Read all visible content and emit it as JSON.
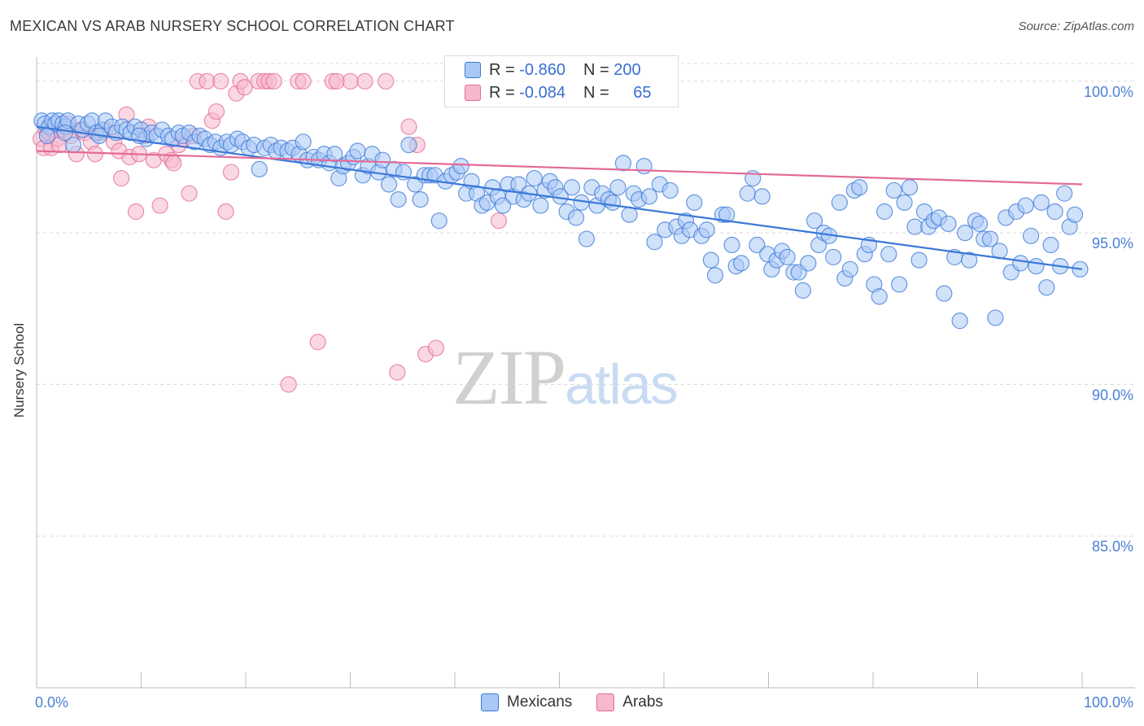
{
  "title": "MEXICAN VS ARAB NURSERY SCHOOL CORRELATION CHART",
  "source": "Source: ZipAtlas.com",
  "watermark": {
    "zip": "ZIP",
    "atlas": "atlas"
  },
  "colors": {
    "blue": "#3a78d8",
    "blue_fill": "#a9c8f5",
    "pink": "#e46a96",
    "pink_fill": "#f6b8cc",
    "tick_text": "#4a7fd4",
    "grid": "#d8d8d8"
  },
  "legend_top": [
    {
      "r_label": "R =",
      "r_value": "-0.860",
      "n_label": "N =",
      "n_value": "200"
    },
    {
      "r_label": "R =",
      "r_value": "-0.084",
      "n_label": "N =",
      "n_value": "65"
    }
  ],
  "legend_bottom": [
    {
      "label": "Mexicans"
    },
    {
      "label": "Arabs"
    }
  ],
  "chart_data": {
    "type": "scatter",
    "title": "MEXICAN VS ARAB NURSERY SCHOOL CORRELATION CHART",
    "xlabel": "",
    "ylabel": "Nursery School",
    "xlim": [
      0,
      100
    ],
    "ylim": [
      80.0,
      100.8
    ],
    "x_tick_labels": [
      "0.0%",
      "100.0%"
    ],
    "y_ticks": [
      85.0,
      90.0,
      95.0,
      100.0
    ],
    "y_tick_labels": [
      "85.0%",
      "90.0%",
      "95.0%",
      "100.0%"
    ],
    "grid": true,
    "series": [
      {
        "name": "Mexicans",
        "color": "#3a78d8",
        "r": -0.86,
        "n": 200,
        "trend": {
          "x": [
            0,
            100
          ],
          "y": [
            98.5,
            93.8
          ]
        },
        "points": [
          [
            0.5,
            98.7
          ],
          [
            0.8,
            98.6
          ],
          [
            1.2,
            98.5
          ],
          [
            1.5,
            98.7
          ],
          [
            1.8,
            98.6
          ],
          [
            2.1,
            98.7
          ],
          [
            2.5,
            98.6
          ],
          [
            2.8,
            98.5
          ],
          [
            3.0,
            98.7
          ],
          [
            3.5,
            97.9
          ],
          [
            4.0,
            98.6
          ],
          [
            4.4,
            98.4
          ],
          [
            4.9,
            98.6
          ],
          [
            5.3,
            98.7
          ],
          [
            5.7,
            98.3
          ],
          [
            6.3,
            98.4
          ],
          [
            6.6,
            98.7
          ],
          [
            7.2,
            98.5
          ],
          [
            7.6,
            98.3
          ],
          [
            8.2,
            98.5
          ],
          [
            8.6,
            98.4
          ],
          [
            9.0,
            98.3
          ],
          [
            9.4,
            98.5
          ],
          [
            10.0,
            98.4
          ],
          [
            10.5,
            98.1
          ],
          [
            11.0,
            98.3
          ],
          [
            11.5,
            98.2
          ],
          [
            12.0,
            98.4
          ],
          [
            12.6,
            98.2
          ],
          [
            13.0,
            98.1
          ],
          [
            13.6,
            98.3
          ],
          [
            14.0,
            98.2
          ],
          [
            14.6,
            98.3
          ],
          [
            15.1,
            98.0
          ],
          [
            15.6,
            98.2
          ],
          [
            16.1,
            98.1
          ],
          [
            16.6,
            97.9
          ],
          [
            17.1,
            98.0
          ],
          [
            17.6,
            97.8
          ],
          [
            18.2,
            98.0
          ],
          [
            18.6,
            97.9
          ],
          [
            19.2,
            98.1
          ],
          [
            19.7,
            98.0
          ],
          [
            20.3,
            97.8
          ],
          [
            20.8,
            97.9
          ],
          [
            21.3,
            97.1
          ],
          [
            21.8,
            97.8
          ],
          [
            22.4,
            97.9
          ],
          [
            22.9,
            97.7
          ],
          [
            23.4,
            97.8
          ],
          [
            24.0,
            97.7
          ],
          [
            24.5,
            97.8
          ],
          [
            25.1,
            97.6
          ],
          [
            25.5,
            98.0
          ],
          [
            25.9,
            97.4
          ],
          [
            26.5,
            97.5
          ],
          [
            27.0,
            97.4
          ],
          [
            27.5,
            97.6
          ],
          [
            28.0,
            97.3
          ],
          [
            28.5,
            97.6
          ],
          [
            28.9,
            96.8
          ],
          [
            29.3,
            97.2
          ],
          [
            29.8,
            97.3
          ],
          [
            30.3,
            97.5
          ],
          [
            30.7,
            97.7
          ],
          [
            31.2,
            96.9
          ],
          [
            31.7,
            97.2
          ],
          [
            32.1,
            97.6
          ],
          [
            32.7,
            97.0
          ],
          [
            33.1,
            97.4
          ],
          [
            33.7,
            96.6
          ],
          [
            34.2,
            97.1
          ],
          [
            34.6,
            96.1
          ],
          [
            35.1,
            97.0
          ],
          [
            35.6,
            97.9
          ],
          [
            36.2,
            96.6
          ],
          [
            36.7,
            96.1
          ],
          [
            37.1,
            96.9
          ],
          [
            37.6,
            96.9
          ],
          [
            38.1,
            96.9
          ],
          [
            38.5,
            95.4
          ],
          [
            39.1,
            96.7
          ],
          [
            39.7,
            96.9
          ],
          [
            40.2,
            97.0
          ],
          [
            40.6,
            97.2
          ],
          [
            41.1,
            96.3
          ],
          [
            41.6,
            96.7
          ],
          [
            42.1,
            96.3
          ],
          [
            42.6,
            95.9
          ],
          [
            43.1,
            96.0
          ],
          [
            43.6,
            96.5
          ],
          [
            44.1,
            96.2
          ],
          [
            44.6,
            95.9
          ],
          [
            45.1,
            96.6
          ],
          [
            45.6,
            96.2
          ],
          [
            46.1,
            96.6
          ],
          [
            46.6,
            96.1
          ],
          [
            47.1,
            96.3
          ],
          [
            47.6,
            96.8
          ],
          [
            48.2,
            95.9
          ],
          [
            48.6,
            96.4
          ],
          [
            49.1,
            96.7
          ],
          [
            49.6,
            96.5
          ],
          [
            50.1,
            96.2
          ],
          [
            50.7,
            95.7
          ],
          [
            51.2,
            96.5
          ],
          [
            51.6,
            95.5
          ],
          [
            52.1,
            96.0
          ],
          [
            52.6,
            94.8
          ],
          [
            53.1,
            96.5
          ],
          [
            53.6,
            95.9
          ],
          [
            54.1,
            96.3
          ],
          [
            54.7,
            96.1
          ],
          [
            55.1,
            96.0
          ],
          [
            55.6,
            96.5
          ],
          [
            56.1,
            97.3
          ],
          [
            56.7,
            95.6
          ],
          [
            57.1,
            96.3
          ],
          [
            57.6,
            96.1
          ],
          [
            58.1,
            97.2
          ],
          [
            58.6,
            96.2
          ],
          [
            59.1,
            94.7
          ],
          [
            59.6,
            96.6
          ],
          [
            60.1,
            95.1
          ],
          [
            60.6,
            96.4
          ],
          [
            61.2,
            95.2
          ],
          [
            61.7,
            94.9
          ],
          [
            62.1,
            95.4
          ],
          [
            62.5,
            95.1
          ],
          [
            62.9,
            96.0
          ],
          [
            63.6,
            94.9
          ],
          [
            64.1,
            95.1
          ],
          [
            64.5,
            94.1
          ],
          [
            64.9,
            93.6
          ],
          [
            65.6,
            95.6
          ],
          [
            66.0,
            95.6
          ],
          [
            66.5,
            94.6
          ],
          [
            66.9,
            93.9
          ],
          [
            67.4,
            94.0
          ],
          [
            68.0,
            96.3
          ],
          [
            68.5,
            96.8
          ],
          [
            68.9,
            94.6
          ],
          [
            69.4,
            96.2
          ],
          [
            69.9,
            94.3
          ],
          [
            70.3,
            93.8
          ],
          [
            70.8,
            94.1
          ],
          [
            71.3,
            94.4
          ],
          [
            71.8,
            94.2
          ],
          [
            72.4,
            93.7
          ],
          [
            72.9,
            93.7
          ],
          [
            73.3,
            93.1
          ],
          [
            73.8,
            94.0
          ],
          [
            74.4,
            95.4
          ],
          [
            74.8,
            94.6
          ],
          [
            75.3,
            95.0
          ],
          [
            75.8,
            94.9
          ],
          [
            76.2,
            94.2
          ],
          [
            76.8,
            96.0
          ],
          [
            77.3,
            93.5
          ],
          [
            77.8,
            93.8
          ],
          [
            78.2,
            96.4
          ],
          [
            78.7,
            96.5
          ],
          [
            79.2,
            94.3
          ],
          [
            79.6,
            94.6
          ],
          [
            80.1,
            93.3
          ],
          [
            80.6,
            92.9
          ],
          [
            81.1,
            95.7
          ],
          [
            81.5,
            94.3
          ],
          [
            82.0,
            96.4
          ],
          [
            82.5,
            93.3
          ],
          [
            83.0,
            96.0
          ],
          [
            83.5,
            96.5
          ],
          [
            84.0,
            95.2
          ],
          [
            84.4,
            94.1
          ],
          [
            84.9,
            95.7
          ],
          [
            85.3,
            95.2
          ],
          [
            85.8,
            95.4
          ],
          [
            86.3,
            95.5
          ],
          [
            86.8,
            93.0
          ],
          [
            87.2,
            95.3
          ],
          [
            87.8,
            94.2
          ],
          [
            88.3,
            92.1
          ],
          [
            88.8,
            95.0
          ],
          [
            89.2,
            94.1
          ],
          [
            89.8,
            95.4
          ],
          [
            90.2,
            95.3
          ],
          [
            90.6,
            94.8
          ],
          [
            91.2,
            94.8
          ],
          [
            91.7,
            92.2
          ],
          [
            92.1,
            94.4
          ],
          [
            92.7,
            95.5
          ],
          [
            93.2,
            93.7
          ],
          [
            93.7,
            95.7
          ],
          [
            94.1,
            94.0
          ],
          [
            94.6,
            95.9
          ],
          [
            95.1,
            94.9
          ],
          [
            95.6,
            93.9
          ],
          [
            96.1,
            96.0
          ],
          [
            96.6,
            93.2
          ],
          [
            97.0,
            94.6
          ],
          [
            97.4,
            95.7
          ],
          [
            97.9,
            93.9
          ],
          [
            98.3,
            96.3
          ],
          [
            98.8,
            95.2
          ],
          [
            99.3,
            95.6
          ],
          [
            99.8,
            93.8
          ],
          [
            1.0,
            98.2
          ],
          [
            2.7,
            98.3
          ],
          [
            6.0,
            98.2
          ],
          [
            9.8,
            98.2
          ]
        ]
      },
      {
        "name": "Arabs",
        "color": "#e46a96",
        "r": -0.084,
        "n": 65,
        "trend": {
          "x": [
            0,
            100
          ],
          "y": [
            97.7,
            96.6
          ]
        },
        "points": [
          [
            0.4,
            98.1
          ],
          [
            0.7,
            97.8
          ],
          [
            0.9,
            98.4
          ],
          [
            1.2,
            98.3
          ],
          [
            1.4,
            97.8
          ],
          [
            1.6,
            98.4
          ],
          [
            2.0,
            98.1
          ],
          [
            2.2,
            97.9
          ],
          [
            2.6,
            98.4
          ],
          [
            3.0,
            98.6
          ],
          [
            3.3,
            98.2
          ],
          [
            3.8,
            97.6
          ],
          [
            4.2,
            98.4
          ],
          [
            4.6,
            98.3
          ],
          [
            5.2,
            98.0
          ],
          [
            5.6,
            97.6
          ],
          [
            6.1,
            98.3
          ],
          [
            6.6,
            98.4
          ],
          [
            7.4,
            98.0
          ],
          [
            7.9,
            97.7
          ],
          [
            8.1,
            96.8
          ],
          [
            8.6,
            98.9
          ],
          [
            8.9,
            97.5
          ],
          [
            9.5,
            95.7
          ],
          [
            9.8,
            97.6
          ],
          [
            10.3,
            98.2
          ],
          [
            10.7,
            98.5
          ],
          [
            11.2,
            97.4
          ],
          [
            11.8,
            95.9
          ],
          [
            12.4,
            97.6
          ],
          [
            12.9,
            97.4
          ],
          [
            13.1,
            97.3
          ],
          [
            13.6,
            97.9
          ],
          [
            14.1,
            98.1
          ],
          [
            14.6,
            96.3
          ],
          [
            15.0,
            98.2
          ],
          [
            15.4,
            100.0
          ],
          [
            16.3,
            100.0
          ],
          [
            16.8,
            98.7
          ],
          [
            17.2,
            99.0
          ],
          [
            17.6,
            100.0
          ],
          [
            18.1,
            95.7
          ],
          [
            18.6,
            97.0
          ],
          [
            19.1,
            99.6
          ],
          [
            19.5,
            100.0
          ],
          [
            19.9,
            99.8
          ],
          [
            21.2,
            100.0
          ],
          [
            21.8,
            100.0
          ],
          [
            22.2,
            100.0
          ],
          [
            22.7,
            100.0
          ],
          [
            24.1,
            90.0
          ],
          [
            25.0,
            100.0
          ],
          [
            25.5,
            100.0
          ],
          [
            26.9,
            91.4
          ],
          [
            28.3,
            100.0
          ],
          [
            28.7,
            100.0
          ],
          [
            30.0,
            100.0
          ],
          [
            31.4,
            100.0
          ],
          [
            33.4,
            100.0
          ],
          [
            34.5,
            90.4
          ],
          [
            35.6,
            98.5
          ],
          [
            36.4,
            97.9
          ],
          [
            37.2,
            91.0
          ],
          [
            38.2,
            91.2
          ],
          [
            44.2,
            95.4
          ]
        ]
      }
    ]
  }
}
